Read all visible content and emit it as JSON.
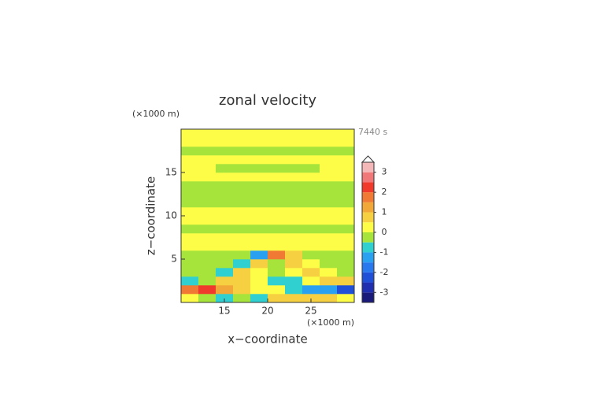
{
  "chart_data": {
    "type": "contour",
    "title": "zonal velocity",
    "time_label": "7440 s",
    "x_label": "x−coordinate",
    "y_label": "z−coordinate",
    "x_unit": "(×1000 m)",
    "y_unit": "(×1000 m)",
    "xlim": [
      10,
      30
    ],
    "ylim": [
      0,
      20
    ],
    "xticks": [
      15,
      20,
      25
    ],
    "yticks": [
      5,
      10,
      15
    ],
    "x": [
      11,
      13,
      15,
      17,
      19,
      21,
      23,
      25,
      27,
      29
    ],
    "y": [
      0.5,
      1.5,
      2.5,
      3.5,
      4.5,
      5.5,
      6.5,
      7.5,
      8.5,
      9.5,
      10.5,
      11.5,
      12.5,
      13.5,
      14.5,
      15.5,
      16.5,
      17.5,
      18.5,
      19.5
    ],
    "z": [
      [
        0.2,
        -0.2,
        -0.6,
        -0.5,
        -1.0,
        0.5,
        0.8,
        0.6,
        0.5,
        0.3
      ],
      [
        1.5,
        2.3,
        1.2,
        0.6,
        0.3,
        0.3,
        -0.8,
        -1.2,
        -1.5,
        -2.3
      ],
      [
        -1.0,
        -0.5,
        0.8,
        0.8,
        0.3,
        -0.8,
        -0.6,
        0.3,
        0.8,
        0.5
      ],
      [
        -0.2,
        -0.2,
        -1.0,
        0.5,
        0.3,
        -0.5,
        0.2,
        0.8,
        0.2,
        -0.2
      ],
      [
        -0.2,
        -0.2,
        -0.2,
        -1.0,
        0.5,
        -0.3,
        0.8,
        0.2,
        -0.2,
        -0.2
      ],
      [
        -0.2,
        -0.2,
        -0.2,
        -0.2,
        -1.2,
        1.5,
        0.6,
        -0.2,
        -0.2,
        -0.2
      ],
      [
        0.2,
        0.2,
        0.2,
        0.2,
        0.2,
        0.2,
        0.2,
        0.2,
        0.2,
        0.2
      ],
      [
        0.2,
        0.2,
        0.2,
        0.2,
        0.2,
        0.2,
        0.2,
        0.2,
        0.2,
        0.2
      ],
      [
        -0.2,
        -0.2,
        -0.2,
        -0.2,
        -0.2,
        -0.2,
        -0.2,
        -0.2,
        -0.2,
        -0.2
      ],
      [
        0.2,
        0.2,
        0.2,
        0.2,
        0.2,
        0.2,
        0.2,
        0.2,
        0.2,
        0.2
      ],
      [
        0.2,
        0.2,
        0.2,
        0.2,
        0.2,
        0.2,
        0.2,
        0.2,
        0.2,
        0.2
      ],
      [
        -0.2,
        -0.2,
        -0.2,
        -0.2,
        -0.2,
        -0.2,
        -0.2,
        -0.2,
        -0.2,
        -0.2
      ],
      [
        -0.2,
        -0.2,
        -0.2,
        -0.2,
        -0.2,
        -0.2,
        -0.2,
        -0.2,
        -0.2,
        -0.2
      ],
      [
        -0.2,
        -0.2,
        -0.2,
        -0.2,
        -0.2,
        -0.2,
        -0.2,
        -0.2,
        -0.2,
        -0.2
      ],
      [
        0.2,
        0.2,
        0.2,
        0.2,
        0.2,
        0.2,
        0.2,
        0.2,
        0.2,
        0.2
      ],
      [
        0.2,
        0.2,
        -0.2,
        -0.2,
        -0.2,
        -0.2,
        -0.2,
        -0.2,
        0.2,
        0.2
      ],
      [
        0.2,
        0.2,
        0.2,
        0.2,
        0.2,
        0.2,
        0.2,
        0.2,
        0.2,
        0.2
      ],
      [
        -0.2,
        -0.2,
        -0.2,
        -0.2,
        -0.2,
        -0.2,
        -0.2,
        -0.2,
        -0.2,
        -0.2
      ],
      [
        0.2,
        0.2,
        0.2,
        0.2,
        0.2,
        0.2,
        0.2,
        0.2,
        0.2,
        0.2
      ],
      [
        0.2,
        0.2,
        0.2,
        0.2,
        0.2,
        0.2,
        0.2,
        0.2,
        0.2,
        0.2
      ]
    ],
    "levels": [
      -3.5,
      -3,
      -2.5,
      -2,
      -1.5,
      -1,
      -0.5,
      0,
      0.5,
      1,
      1.5,
      2,
      2.5,
      3,
      3.5
    ],
    "colors": [
      "#1a1a7a",
      "#1f2fb0",
      "#2050d8",
      "#2a78ee",
      "#2aa0f0",
      "#30cfd0",
      "#a6e43c",
      "#fdfd48",
      "#f6d040",
      "#f2a838",
      "#f07a34",
      "#f03a2c",
      "#f07878",
      "#f4b8b8"
    ],
    "colorbar_ticks": [
      -3,
      -2,
      -1,
      0,
      1,
      2,
      3
    ]
  }
}
